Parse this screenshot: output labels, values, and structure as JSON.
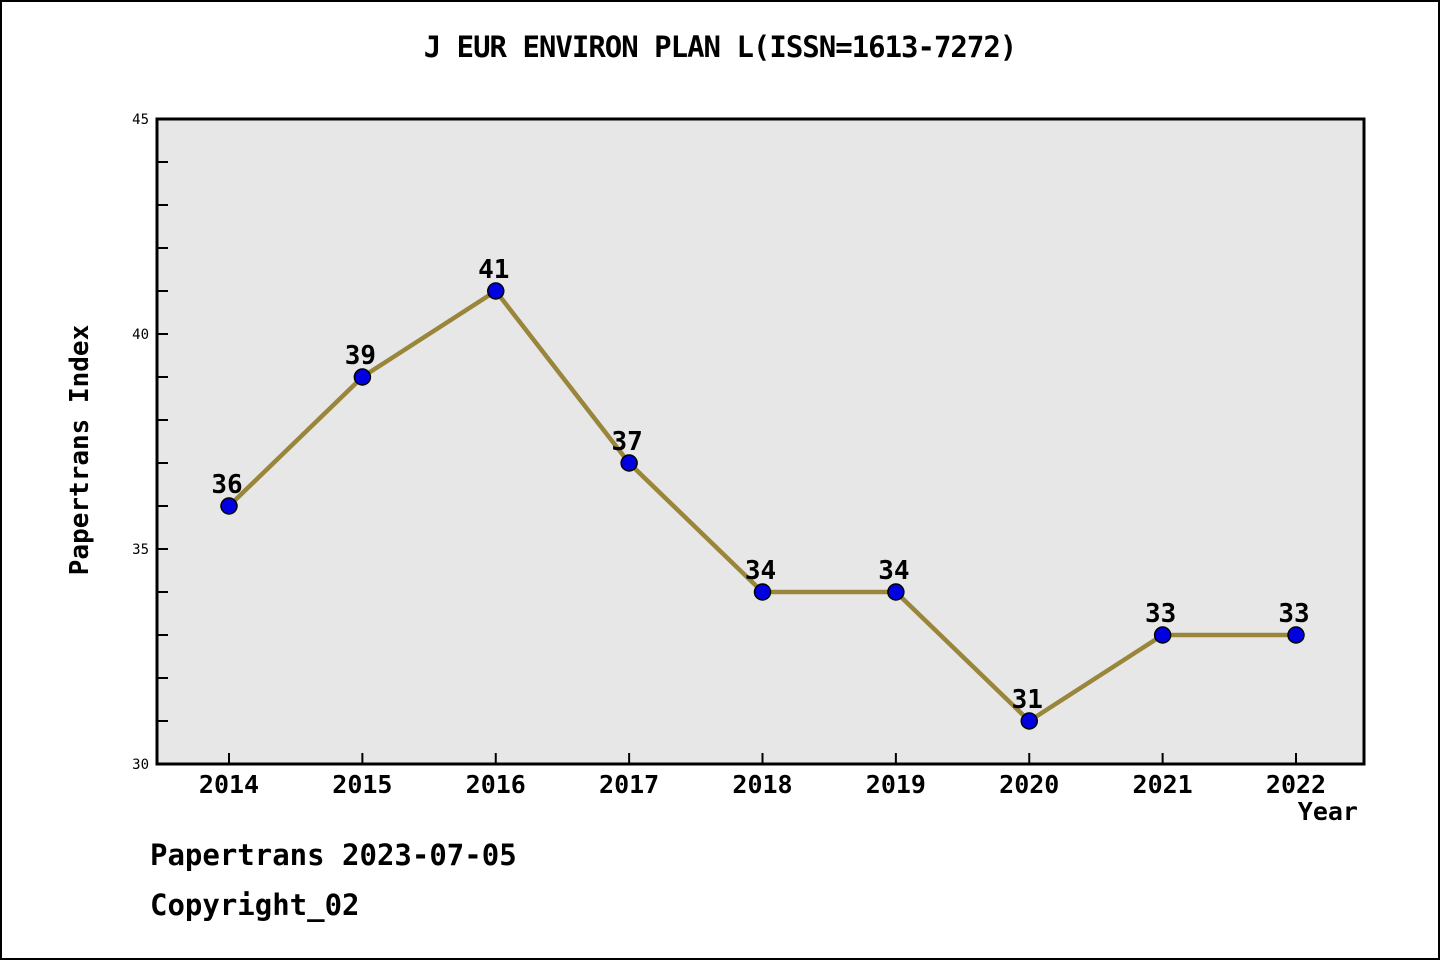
{
  "title": "J EUR ENVIRON PLAN L(ISSN=1613-7272)",
  "footer": {
    "line1": "Papertrans 2023-07-05",
    "line2": "Copyright_02"
  },
  "chart_data": {
    "type": "line",
    "title": "J EUR ENVIRON PLAN L(ISSN=1613-7272)",
    "xlabel": "Year",
    "ylabel": "Papertrans Index",
    "categories": [
      "2014",
      "2015",
      "2016",
      "2017",
      "2018",
      "2019",
      "2020",
      "2021",
      "2022"
    ],
    "values": [
      36,
      39,
      41,
      37,
      34,
      34,
      31,
      33,
      33
    ],
    "point_labels": [
      "36",
      "39",
      "41",
      "37",
      "34",
      "34",
      "31",
      "33",
      "33"
    ],
    "ylim": [
      30,
      45
    ],
    "yticks": [
      30,
      35,
      40,
      45
    ],
    "y_minor_step": 1,
    "grid": false,
    "legend": null,
    "colors": {
      "line": "#99863B",
      "marker": "#0000E0",
      "marker_edge": "#000000",
      "plot_bg": "#E7E7E7",
      "axis": "#000000",
      "text": "#000000"
    }
  }
}
